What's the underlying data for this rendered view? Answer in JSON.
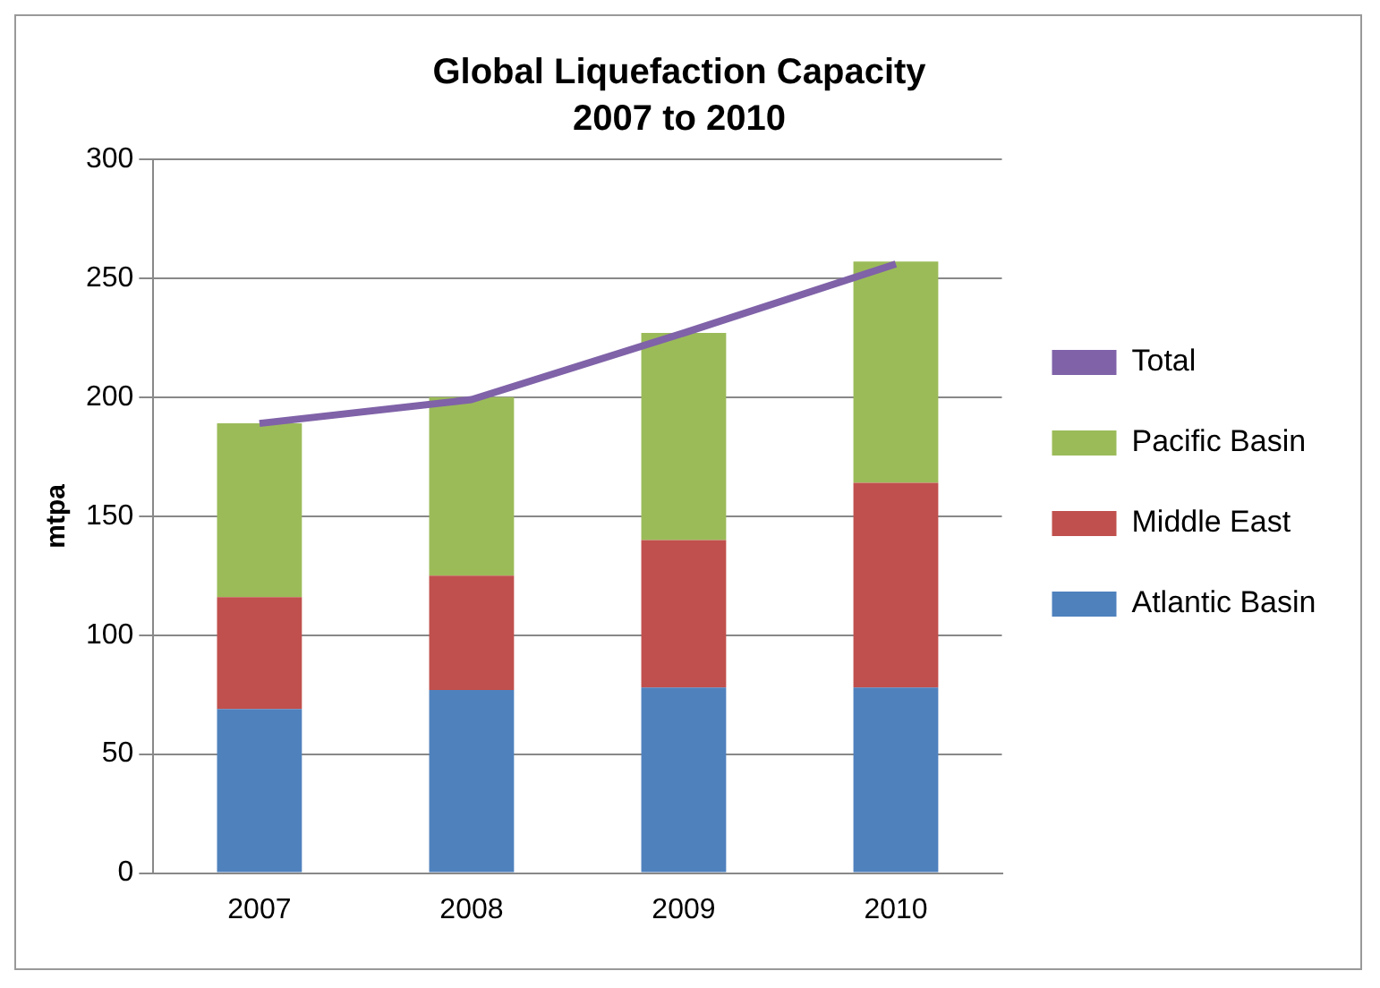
{
  "chart_data": {
    "type": "bar",
    "title": "Global Liquefaction Capacity",
    "subtitle": "2007 to 2010",
    "ylabel": "mtpa",
    "categories": [
      "2007",
      "2008",
      "2009",
      "2010"
    ],
    "stacked": true,
    "series": [
      {
        "name": "Atlantic Basin",
        "color": "#4f81bd",
        "values": [
          69,
          77,
          78,
          78
        ]
      },
      {
        "name": "Middle East",
        "color": "#c0504d",
        "values": [
          47,
          48,
          62,
          86
        ]
      },
      {
        "name": "Pacific Basin",
        "color": "#9bbb59",
        "values": [
          73,
          75,
          87,
          93
        ]
      },
      {
        "name": "Total",
        "type": "line",
        "color": "#7f62a8",
        "values": [
          189,
          199,
          227,
          256
        ],
        "marker": "none"
      }
    ],
    "ylim": [
      0,
      300
    ],
    "yticks": [
      0,
      50,
      100,
      150,
      200,
      250,
      300
    ],
    "grid": "y",
    "legend": "right"
  }
}
